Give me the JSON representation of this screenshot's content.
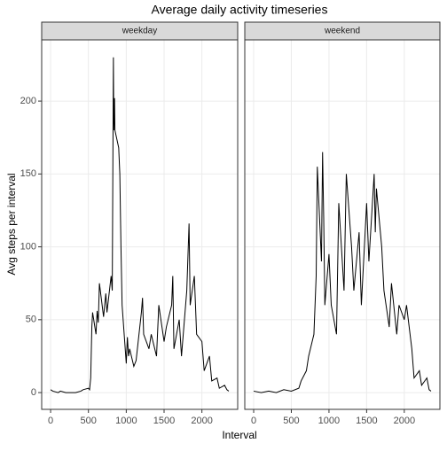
{
  "chart_data": {
    "type": "line",
    "title": "Average daily activity timeseries",
    "x_label": "Interval",
    "y_label": "Avg steps per interval",
    "xlim": [
      -118,
      2473
    ],
    "ylim": [
      -11.5,
      242
    ],
    "xticks": [
      0,
      500,
      1000,
      1500,
      2000
    ],
    "yticks": [
      0,
      50,
      100,
      150,
      200
    ],
    "grid": true,
    "series": [
      {
        "name": "weekday",
        "color": "#000000",
        "x": [
          0,
          30,
          100,
          130,
          200,
          230,
          300,
          330,
          400,
          430,
          500,
          515,
          530,
          545,
          555,
          600,
          615,
          630,
          645,
          700,
          715,
          730,
          745,
          800,
          815,
          830,
          835,
          845,
          850,
          900,
          915,
          930,
          945,
          1000,
          1015,
          1030,
          1045,
          1100,
          1130,
          1200,
          1215,
          1230,
          1300,
          1330,
          1400,
          1430,
          1500,
          1530,
          1600,
          1615,
          1630,
          1700,
          1730,
          1800,
          1830,
          1845,
          1900,
          1930,
          2000,
          2030,
          2100,
          2130,
          2200,
          2230,
          2300,
          2330,
          2355
        ],
        "values": [
          2,
          1,
          0,
          1,
          0,
          0,
          0,
          0,
          1,
          2,
          3,
          2,
          10,
          45,
          55,
          40,
          56,
          48,
          75,
          52,
          60,
          68,
          55,
          80,
          70,
          230,
          180,
          202,
          180,
          168,
          150,
          100,
          60,
          20,
          38,
          25,
          30,
          18,
          22,
          55,
          65,
          40,
          30,
          40,
          25,
          60,
          35,
          45,
          60,
          80,
          30,
          50,
          25,
          70,
          116,
          60,
          80,
          40,
          35,
          15,
          25,
          8,
          10,
          3,
          5,
          2,
          1
        ]
      },
      {
        "name": "weekend",
        "color": "#000000",
        "x": [
          0,
          100,
          200,
          300,
          400,
          500,
          600,
          630,
          700,
          730,
          800,
          830,
          845,
          900,
          915,
          930,
          945,
          1000,
          1030,
          1100,
          1130,
          1200,
          1230,
          1300,
          1330,
          1400,
          1430,
          1500,
          1530,
          1600,
          1615,
          1630,
          1700,
          1730,
          1800,
          1830,
          1900,
          1930,
          2000,
          2030,
          2100,
          2130,
          2200,
          2230,
          2300,
          2330,
          2355
        ],
        "values": [
          1,
          0,
          1,
          0,
          2,
          1,
          3,
          8,
          15,
          25,
          40,
          80,
          155,
          90,
          165,
          120,
          60,
          95,
          60,
          40,
          130,
          70,
          150,
          100,
          70,
          110,
          60,
          130,
          90,
          150,
          110,
          140,
          100,
          70,
          45,
          75,
          40,
          60,
          50,
          60,
          30,
          10,
          15,
          5,
          10,
          2,
          1
        ]
      }
    ]
  }
}
